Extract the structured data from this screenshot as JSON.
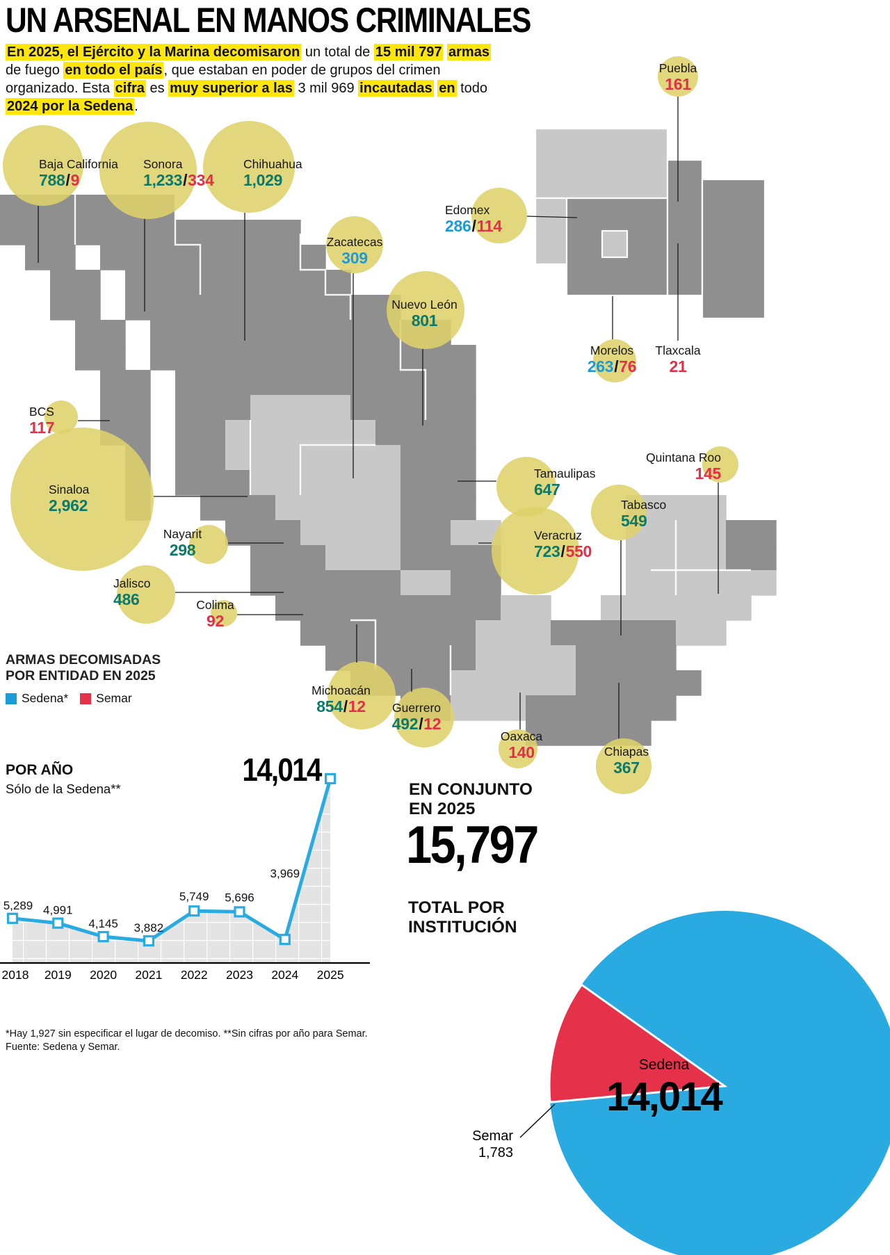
{
  "colors": {
    "highlight_yellow": "#ffe60a",
    "bubble_yellow": "#ded26a",
    "map_dark": "#8f8f8f",
    "map_light": "#c8c8c8",
    "sedena_blue": "#1b9cd9",
    "semar_red": "#e6314b",
    "sedena_teal": "#0b7a6b",
    "line_blue": "#29abe2"
  },
  "header": {
    "title": "UN ARSENAL EN MANOS CRIMINALES",
    "intro_segments": [
      {
        "t": "En 2025, el Ejército y la Marina decomisaron",
        "h": true
      },
      {
        "t": " un total de ",
        "h": false
      },
      {
        "t": "15 mil 797",
        "h": true
      },
      {
        "t": " ",
        "h": false
      },
      {
        "t": "armas",
        "h": true
      },
      {
        "t": " de fuego ",
        "h": false
      },
      {
        "t": "en todo el país",
        "h": true
      },
      {
        "t": ", que estaban en poder de grupos del crimen organizado.  Esta ",
        "h": false
      },
      {
        "t": "cifra",
        "h": true
      },
      {
        "t": " es ",
        "h": false
      },
      {
        "t": "muy superior a las",
        "h": true
      },
      {
        "t": " 3 mil 969 ",
        "h": false
      },
      {
        "t": "incautadas",
        "h": true
      },
      {
        "t": " ",
        "h": false
      },
      {
        "t": "en",
        "h": true
      },
      {
        "t": " todo ",
        "h": false
      },
      {
        "t": "2024 por la Sedena",
        "h": true
      },
      {
        "t": ".",
        "h": false
      }
    ]
  },
  "legend": {
    "line1": "ARMAS DECOMISADAS",
    "line2": "POR ENTIDAD EN 2025",
    "sedena": "Sedena*",
    "semar": "Semar"
  },
  "conjunto": {
    "line1": "EN CONJUNTO",
    "line2": "EN 2025",
    "inst1": "TOTAL POR",
    "inst2": "INSTITUCIÓN"
  },
  "footnotes": {
    "line1": "*Hay 1,927 sin especificar el lugar de decomiso. **Sin cifras por año para Semar.",
    "line2": "Fuente: Sedena y Semar."
  },
  "chart_data": [
    {
      "type": "line",
      "title": "POR AÑO",
      "subtitle": "Sólo de la Sedena**",
      "x": [
        "2018",
        "2019",
        "2020",
        "2021",
        "2022",
        "2023",
        "2024",
        "2025"
      ],
      "values": [
        5289,
        4991,
        4145,
        3882,
        5749,
        5696,
        3969,
        14014
      ],
      "point_labels": [
        "5,289",
        "4,991",
        "4,145",
        "3,882",
        "5,749",
        "5,696",
        "3,969",
        "14,014"
      ],
      "line_color": "#29abe2",
      "marker": "square",
      "area_fill": "gray-grid",
      "ylim": [
        0,
        14014
      ],
      "grid": true
    },
    {
      "type": "pie",
      "title": "TOTAL POR INSTITUCIÓN",
      "total": 15797,
      "total_label": "15,797",
      "slices": [
        {
          "name": "Sedena",
          "value": 14014,
          "label": "14,014",
          "color": "#29abe2"
        },
        {
          "name": "Semar",
          "value": 1783,
          "label": "1,783",
          "color": "#e6314b"
        }
      ]
    },
    {
      "type": "map-bubbles",
      "title": "ARMAS DECOMISADAS POR ENTIDAD EN 2025",
      "legend": [
        {
          "name": "Sedena*",
          "color": "#1b9cd9"
        },
        {
          "name": "Semar",
          "color": "#e6314b"
        }
      ],
      "states": [
        {
          "name": "Baja California",
          "sedena": 788,
          "semar": 9,
          "sedena_label": "788",
          "semar_label": "9",
          "sedena_color": "teal"
        },
        {
          "name": "Sonora",
          "sedena": 1233,
          "semar": 334,
          "sedena_label": "1,233",
          "semar_label": "334",
          "sedena_color": "teal"
        },
        {
          "name": "Chihuahua",
          "sedena": 1029,
          "sedena_label": "1,029",
          "sedena_color": "teal"
        },
        {
          "name": "Zacatecas",
          "sedena": 309,
          "sedena_label": "309",
          "sedena_color": "blue"
        },
        {
          "name": "Nuevo León",
          "sedena": 801,
          "sedena_label": "801",
          "sedena_color": "teal"
        },
        {
          "name": "Puebla",
          "semar": 161,
          "semar_label": "161"
        },
        {
          "name": "Edomex",
          "sedena": 286,
          "semar": 114,
          "sedena_label": "286",
          "semar_label": "114",
          "sedena_color": "blue"
        },
        {
          "name": "Morelos",
          "sedena": 263,
          "semar": 76,
          "sedena_label": "263",
          "semar_label": "76",
          "sedena_color": "blue"
        },
        {
          "name": "Tlaxcala",
          "semar": 21,
          "semar_label": "21"
        },
        {
          "name": "BCS",
          "semar": 117,
          "semar_label": "117"
        },
        {
          "name": "Sinaloa",
          "sedena": 2962,
          "sedena_label": "2,962",
          "sedena_color": "teal"
        },
        {
          "name": "Nayarit",
          "sedena": 298,
          "sedena_label": "298",
          "sedena_color": "teal"
        },
        {
          "name": "Jalisco",
          "sedena": 486,
          "sedena_label": "486",
          "sedena_color": "teal"
        },
        {
          "name": "Colima",
          "semar": 92,
          "semar_label": "92"
        },
        {
          "name": "Tamaulipas",
          "sedena": 647,
          "sedena_label": "647",
          "sedena_color": "teal"
        },
        {
          "name": "Veracruz",
          "sedena": 723,
          "semar": 550,
          "sedena_label": "723",
          "semar_label": "550",
          "sedena_color": "teal"
        },
        {
          "name": "Quintana Roo",
          "semar": 145,
          "semar_label": "145"
        },
        {
          "name": "Tabasco",
          "sedena": 549,
          "sedena_label": "549",
          "sedena_color": "teal"
        },
        {
          "name": "Michoacán",
          "sedena": 854,
          "semar": 12,
          "sedena_label": "854",
          "semar_label": "12",
          "sedena_color": "teal"
        },
        {
          "name": "Guerrero",
          "sedena": 492,
          "semar": 12,
          "sedena_label": "492",
          "semar_label": "12",
          "sedena_color": "teal"
        },
        {
          "name": "Oaxaca",
          "semar": 140,
          "semar_label": "140"
        },
        {
          "name": "Chiapas",
          "sedena": 367,
          "sedena_label": "367",
          "sedena_color": "teal"
        }
      ]
    }
  ]
}
